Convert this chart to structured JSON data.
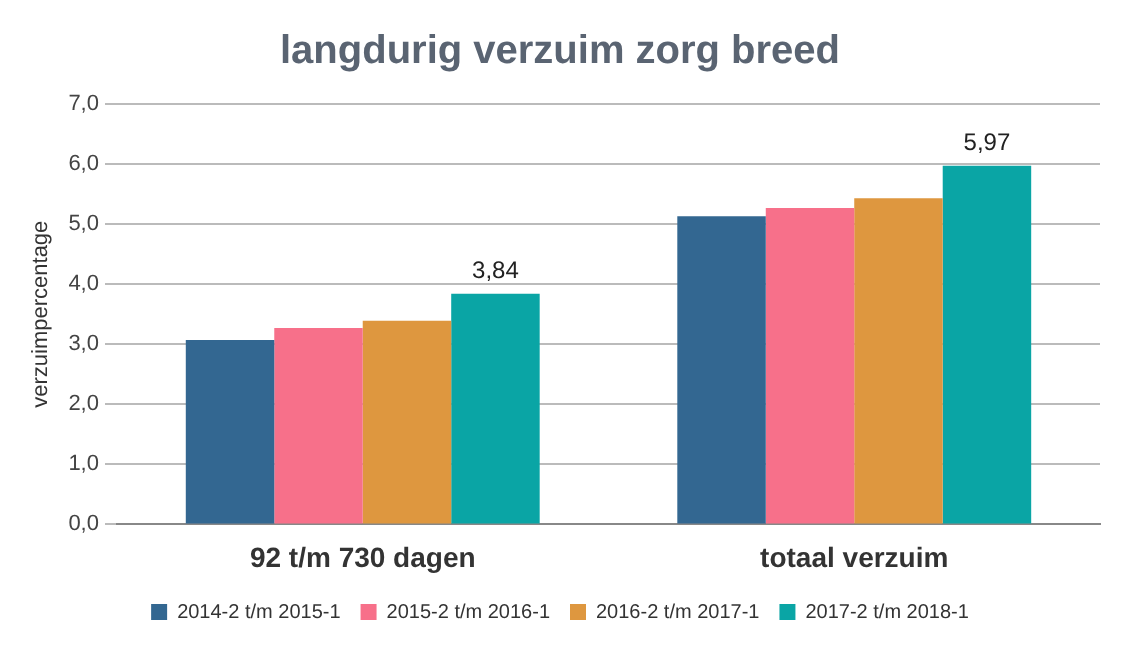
{
  "chart_data": {
    "type": "bar",
    "title": "langdurig verzuim zorg breed",
    "ylabel": "verzuimpercentage",
    "categories": [
      "92 t/m 730 dagen",
      "totaal verzuim"
    ],
    "series": [
      {
        "name": "2014-2 t/m 2015-1",
        "color": "#336791",
        "values": [
          3.07,
          5.13
        ]
      },
      {
        "name": "2015-2 t/m 2016-1",
        "color": "#f7708a",
        "values": [
          3.27,
          5.27
        ]
      },
      {
        "name": "2016-2 t/m 2017-1",
        "color": "#de973f",
        "values": [
          3.39,
          5.43
        ]
      },
      {
        "name": "2017-2 t/m 2018-1",
        "color": "#0aa5a5",
        "values": [
          3.84,
          5.97
        ],
        "value_labels": [
          "3,84",
          "5,97"
        ]
      }
    ],
    "ylim": [
      0,
      7
    ],
    "yticks": [
      {
        "value": 0,
        "label": "0,0"
      },
      {
        "value": 1,
        "label": "1,0"
      },
      {
        "value": 2,
        "label": "2,0"
      },
      {
        "value": 3,
        "label": "3,0"
      },
      {
        "value": 4,
        "label": "4,0"
      },
      {
        "value": 5,
        "label": "5,0"
      },
      {
        "value": 6,
        "label": "6,0"
      },
      {
        "value": 7,
        "label": "7,0"
      }
    ],
    "grid": "y",
    "legend": "bottom"
  }
}
